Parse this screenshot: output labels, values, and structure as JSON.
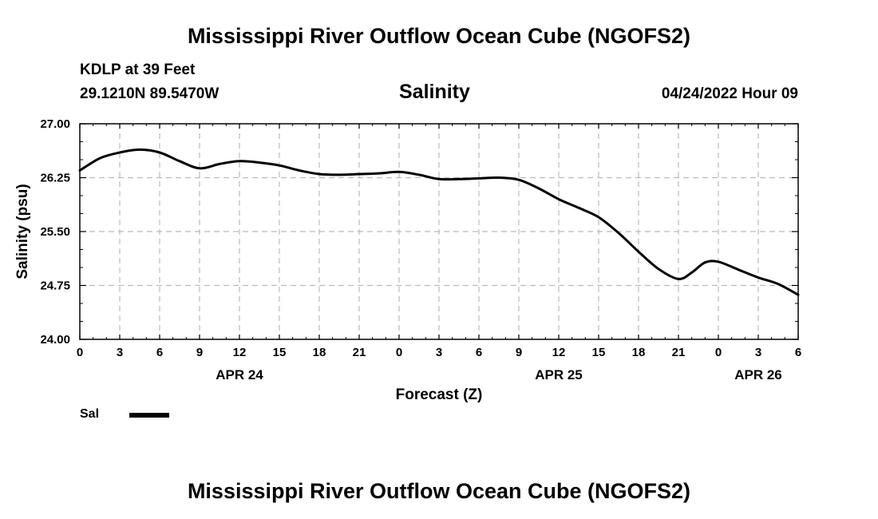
{
  "header": {
    "main_title": "Mississippi River Outflow Ocean Cube (NGOFS2)",
    "station": "KDLP at 39 Feet",
    "location": "29.1210N  89.5470W",
    "variable": "Salinity",
    "datetime": "04/24/2022 Hour 09"
  },
  "footer": {
    "main_title": "Mississippi River Outflow Ocean Cube (NGOFS2)"
  },
  "legend": {
    "label": "Sal",
    "color": "#000000"
  },
  "chart_data": {
    "type": "line",
    "title": "Salinity",
    "xlabel": "Forecast (Z)",
    "ylabel": "Salinity (psu)",
    "ylim": [
      24.0,
      27.0
    ],
    "xlim": [
      0,
      54
    ],
    "grid": true,
    "y_ticks": [
      "24.00",
      "24.75",
      "25.50",
      "26.25",
      "27.00"
    ],
    "y_tick_values": [
      24.0,
      24.75,
      25.5,
      26.25,
      27.0
    ],
    "y_minor_step": 0.25,
    "x_ticks": [
      {
        "hour": 0,
        "label": "0"
      },
      {
        "hour": 3,
        "label": "3"
      },
      {
        "hour": 6,
        "label": "6"
      },
      {
        "hour": 9,
        "label": "9"
      },
      {
        "hour": 12,
        "label": "12"
      },
      {
        "hour": 15,
        "label": "15"
      },
      {
        "hour": 18,
        "label": "18"
      },
      {
        "hour": 21,
        "label": "21"
      },
      {
        "hour": 24,
        "label": "0"
      },
      {
        "hour": 27,
        "label": "3"
      },
      {
        "hour": 30,
        "label": "6"
      },
      {
        "hour": 33,
        "label": "9"
      },
      {
        "hour": 36,
        "label": "12"
      },
      {
        "hour": 39,
        "label": "15"
      },
      {
        "hour": 42,
        "label": "18"
      },
      {
        "hour": 45,
        "label": "21"
      },
      {
        "hour": 48,
        "label": "0"
      },
      {
        "hour": 51,
        "label": "3"
      },
      {
        "hour": 54,
        "label": "6"
      }
    ],
    "date_labels": [
      {
        "hour": 12,
        "label": "APR 24"
      },
      {
        "hour": 36,
        "label": "APR 25"
      },
      {
        "hour": 51,
        "label": "APR 26"
      }
    ],
    "series": [
      {
        "name": "Sal",
        "color": "#000000",
        "x": [
          0,
          1.5,
          3,
          4.5,
          6,
          7.5,
          9,
          10.5,
          12,
          13.5,
          15,
          16.5,
          18,
          19.5,
          21,
          22.5,
          24,
          25.5,
          27,
          28.5,
          30,
          31.5,
          33,
          34.5,
          36,
          37.5,
          39,
          40.5,
          42,
          43.5,
          45,
          46,
          47,
          48,
          49.5,
          51,
          52.5,
          54
        ],
        "values": [
          26.35,
          26.52,
          26.6,
          26.64,
          26.6,
          26.48,
          26.38,
          26.44,
          26.48,
          26.46,
          26.42,
          26.35,
          26.3,
          26.29,
          26.3,
          26.31,
          26.33,
          26.29,
          26.23,
          26.23,
          26.24,
          26.25,
          26.22,
          26.1,
          25.95,
          25.83,
          25.7,
          25.48,
          25.22,
          24.98,
          24.84,
          24.93,
          25.07,
          25.08,
          24.97,
          24.86,
          24.77,
          24.62
        ]
      }
    ]
  }
}
